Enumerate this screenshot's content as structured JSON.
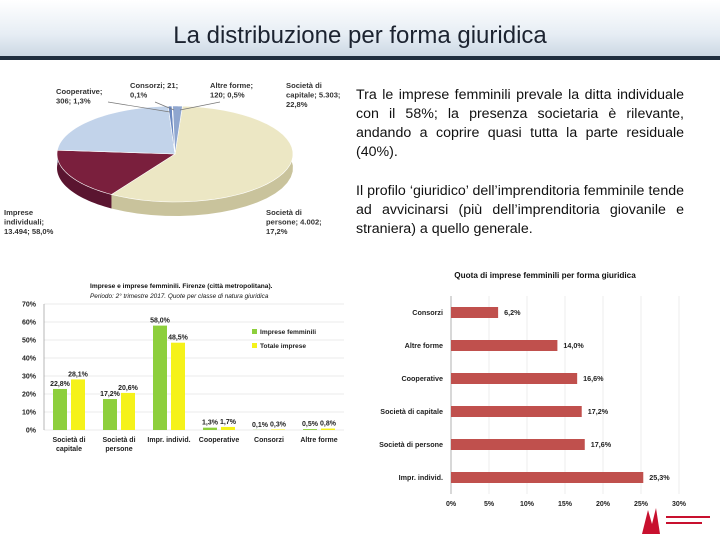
{
  "header": {
    "title": "La distribuzione per forma giuridica"
  },
  "text": {
    "p1": "Tra le imprese femminili prevale la ditta individuale con il 58%; la presenza societaria è rilevante, andando a coprire quasi tutta la parte residuale (40%).",
    "p2": "Il profilo ‘giuridico’ dell’imprenditoria femminile tende ad avvicinarsi (più dell’imprenditoria giovanile e straniera) a quello generale."
  },
  "colors": {
    "primary": "#1f2e3f",
    "pie_cream": "#ece7c4",
    "pie_maroon": "#7a1f3d",
    "green": "#8dcf3c",
    "yellow": "#f5f21a",
    "red_bar": "#c0504d"
  },
  "chart_data": [
    {
      "type": "pie",
      "slices": [
        {
          "name": "Imprese individuali",
          "value": 13494,
          "pct": 58.0,
          "label": "Imprese individuali; 13.494; 58,0%"
        },
        {
          "name": "Società di persone",
          "value": 4002,
          "pct": 17.2,
          "label": "Società di persone; 4.002; 17,2%"
        },
        {
          "name": "Società di capitale",
          "value": 5303,
          "pct": 22.8,
          "label": "Società di capitale; 5.303; 22,8%"
        },
        {
          "name": "Altre forme",
          "value": 120,
          "pct": 0.5,
          "label": "Altre forme; 120; 0,5%"
        },
        {
          "name": "Consorzi",
          "value": 21,
          "pct": 0.1,
          "label": "Consorzi; 21; 0,1%"
        },
        {
          "name": "Cooperative",
          "value": 306,
          "pct": 1.3,
          "label": "Cooperative; 306; 1,3%"
        }
      ]
    },
    {
      "type": "bar",
      "title": "Imprese e imprese femminili. Firenze (città metropolitana).",
      "subtitle": "Periodo: 2° trimestre 2017. Quote per classe di natura giuridica",
      "categories": [
        "Società di capitale",
        "Società di persone",
        "Impr. individ.",
        "Cooperative",
        "Consorzi",
        "Altre forme"
      ],
      "series": [
        {
          "name": "Imprese femminili",
          "values": [
            22.8,
            17.2,
            58.0,
            1.3,
            0.1,
            0.5
          ],
          "labels": [
            "22,8%",
            "17,2%",
            "58,0%",
            "1,3%",
            "0,1%",
            "0,5%"
          ]
        },
        {
          "name": "Totale imprese",
          "values": [
            28.1,
            20.6,
            48.5,
            1.7,
            0.3,
            0.8
          ],
          "labels": [
            "28,1%",
            "20,6%",
            "48,5%",
            "1,7%",
            "0,3%",
            "0,8%"
          ]
        }
      ],
      "ylim": [
        0,
        70
      ],
      "yticks": [
        "0%",
        "10%",
        "20%",
        "30%",
        "40%",
        "50%",
        "60%",
        "70%"
      ],
      "legend": "right"
    },
    {
      "type": "bar",
      "orientation": "horizontal",
      "title": "Quota di imprese femminili per forma giuridica",
      "categories": [
        "Consorzi",
        "Altre forme",
        "Cooperative",
        "Società di capitale",
        "Società di persone",
        "Impr. individ."
      ],
      "values": [
        6.2,
        14.0,
        16.6,
        17.2,
        17.6,
        25.3
      ],
      "labels": [
        "6,2%",
        "14,0%",
        "16,6%",
        "17,2%",
        "17,6%",
        "25,3%"
      ],
      "xlim": [
        0,
        30
      ],
      "xticks": [
        "0%",
        "5%",
        "10%",
        "15%",
        "20%",
        "25%",
        "30%"
      ]
    }
  ]
}
